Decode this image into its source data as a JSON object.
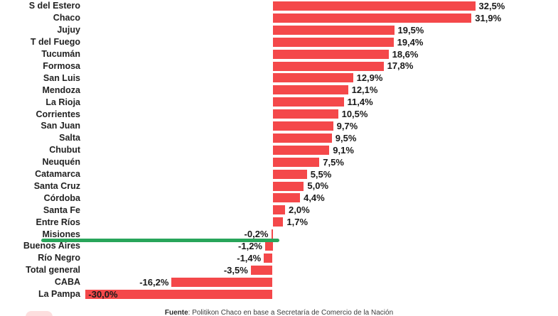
{
  "chart_data": {
    "type": "bar",
    "orientation": "horizontal",
    "unit": "%",
    "categories": [
      "S del Estero",
      "Chaco",
      "Jujuy",
      "T del Fuego",
      "Tucumán",
      "Formosa",
      "San Luis",
      "Mendoza",
      "La Rioja",
      "Corrientes",
      "San Juan",
      "Salta",
      "Chubut",
      "Neuquén",
      "Catamarca",
      "Santa Cruz",
      "Córdoba",
      "Santa Fe",
      "Entre Ríos",
      "Misiones",
      "Buenos Aires",
      "Río Negro",
      "Total general",
      "CABA",
      "La Pampa"
    ],
    "values": [
      32.5,
      31.9,
      19.5,
      19.4,
      18.6,
      17.8,
      12.9,
      12.1,
      11.4,
      10.5,
      9.7,
      9.5,
      9.1,
      7.5,
      5.5,
      5.0,
      4.4,
      2.0,
      1.7,
      -0.2,
      -1.2,
      -1.4,
      -3.5,
      -16.2,
      -30.0
    ],
    "value_labels": [
      "32,5%",
      "31,9%",
      "19,5%",
      "19,4%",
      "18,6%",
      "17,8%",
      "12,9%",
      "12,1%",
      "11,4%",
      "10,5%",
      "9,7%",
      "9,5%",
      "9,1%",
      "7,5%",
      "5,5%",
      "5,0%",
      "4,4%",
      "2,0%",
      "1,7%",
      "-0,2%",
      "-1,2%",
      "-1,4%",
      "-3,5%",
      "-16,2%",
      "-30,0%"
    ],
    "bar_color": "#f4484a",
    "value_label_color": "#191919",
    "xlim": [
      -30,
      33
    ],
    "grid": false,
    "legend": false,
    "highlight": {
      "category": "Misiones",
      "style": "green-underline",
      "color": "#28a55a"
    }
  },
  "footer": {
    "source_label": "Fuente",
    "source_text": ": Politikon Chaco en base a Secretaría de Comercio de la Nación"
  }
}
